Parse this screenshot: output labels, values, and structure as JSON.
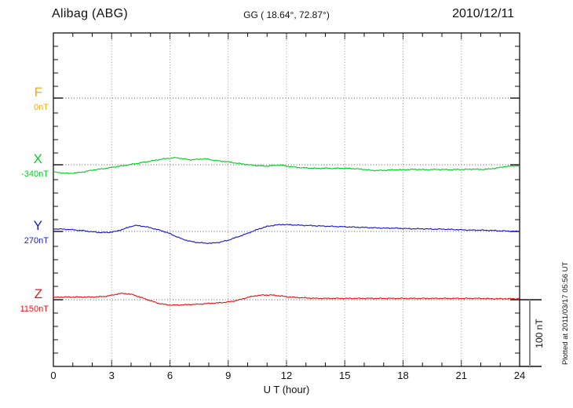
{
  "header": {
    "station": "Alibag (ABG)",
    "coordinates": "GG ( 18.64°,  72.87°)",
    "date": "2010/12/11"
  },
  "footer": {
    "plotted_at": "Plotted at 2011/03/17 05:56 UT"
  },
  "colors": {
    "frame": "#111111",
    "grid": "#999999",
    "baseline_dots": "#555555",
    "scale_bar": "#888888",
    "text": "#111111"
  },
  "chart_data": {
    "type": "line",
    "title": "Alibag (ABG) magnetogram 2010/12/11",
    "xlabel": "U T (hour)",
    "ylabel": "",
    "x_range": [
      0,
      24
    ],
    "x_ticks": [
      0,
      3,
      6,
      9,
      12,
      15,
      18,
      21,
      24
    ],
    "x_minor_tick_step_hours": 1,
    "grid": "dotted vertical lines every 3 h; dotted horizontal line at each channel baseline",
    "legend_position": "left baseline labels",
    "scale_bar": {
      "label": "100 nT",
      "value_nT": 100
    },
    "series": [
      {
        "name": "F",
        "baseline_label": "0nT",
        "baseline_value_nT": 0,
        "color": "#ffaa00",
        "points": []
      },
      {
        "name": "X",
        "baseline_label": "-340nT",
        "baseline_value_nT": -340,
        "color": "#00d020",
        "points": [
          [
            0,
            -11
          ],
          [
            0.4,
            -12
          ],
          [
            0.8,
            -13
          ],
          [
            1.2,
            -12
          ],
          [
            1.6,
            -10.5
          ],
          [
            2,
            -8
          ],
          [
            2.4,
            -6.5
          ],
          [
            2.8,
            -5
          ],
          [
            3.2,
            -3
          ],
          [
            3.6,
            -1.5
          ],
          [
            4,
            0.5
          ],
          [
            4.4,
            2.5
          ],
          [
            4.8,
            4.5
          ],
          [
            5.2,
            6.5
          ],
          [
            5.6,
            8.5
          ],
          [
            6,
            10
          ],
          [
            6.3,
            10.5
          ],
          [
            6.6,
            9.5
          ],
          [
            7,
            7.5
          ],
          [
            7.4,
            8
          ],
          [
            7.8,
            9
          ],
          [
            8.2,
            7
          ],
          [
            8.6,
            5.5
          ],
          [
            9,
            4.5
          ],
          [
            9.4,
            2.5
          ],
          [
            9.8,
            1
          ],
          [
            10.2,
            -0.5
          ],
          [
            10.6,
            -1.5
          ],
          [
            11,
            -2
          ],
          [
            11.4,
            -1
          ],
          [
            11.7,
            -0.5
          ],
          [
            12,
            -2
          ],
          [
            12.4,
            -3.5
          ],
          [
            12.8,
            -4.5
          ],
          [
            13.2,
            -5
          ],
          [
            13.6,
            -5.5
          ],
          [
            14,
            -5
          ],
          [
            14.4,
            -5.5
          ],
          [
            14.8,
            -5
          ],
          [
            15.2,
            -5.5
          ],
          [
            15.6,
            -6
          ],
          [
            16,
            -7
          ],
          [
            16.4,
            -8.5
          ],
          [
            16.8,
            -8.5
          ],
          [
            17.2,
            -8
          ],
          [
            17.6,
            -7.5
          ],
          [
            18,
            -7.5
          ],
          [
            18.4,
            -7
          ],
          [
            18.8,
            -7
          ],
          [
            19.2,
            -7.5
          ],
          [
            19.6,
            -7
          ],
          [
            20,
            -7
          ],
          [
            20.4,
            -7.5
          ],
          [
            20.8,
            -7
          ],
          [
            21.2,
            -7
          ],
          [
            21.6,
            -6.5
          ],
          [
            22,
            -7
          ],
          [
            22.4,
            -6.5
          ],
          [
            22.8,
            -5
          ],
          [
            23.2,
            -3
          ],
          [
            23.6,
            -2
          ],
          [
            24,
            -1.5
          ]
        ]
      },
      {
        "name": "Y",
        "baseline_label": "270nT",
        "baseline_value_nT": 270,
        "color": "#1a1ace",
        "points": [
          [
            0,
            4
          ],
          [
            0.4,
            3.5
          ],
          [
            0.8,
            3
          ],
          [
            1.2,
            2
          ],
          [
            1.6,
            1
          ],
          [
            2,
            -0.5
          ],
          [
            2.4,
            -1.5
          ],
          [
            2.8,
            -1.5
          ],
          [
            3.2,
            0
          ],
          [
            3.6,
            3.5
          ],
          [
            4,
            7.5
          ],
          [
            4.2,
            9
          ],
          [
            4.6,
            8
          ],
          [
            5,
            5.5
          ],
          [
            5.4,
            2.5
          ],
          [
            5.8,
            -1
          ],
          [
            6.2,
            -6
          ],
          [
            6.6,
            -11
          ],
          [
            7,
            -14.5
          ],
          [
            7.4,
            -16.5
          ],
          [
            7.8,
            -17.5
          ],
          [
            8.2,
            -17.5
          ],
          [
            8.6,
            -16
          ],
          [
            9,
            -13
          ],
          [
            9.4,
            -9
          ],
          [
            9.8,
            -5
          ],
          [
            10.2,
            -0.5
          ],
          [
            10.6,
            4
          ],
          [
            11,
            7.5
          ],
          [
            11.4,
            9.5
          ],
          [
            11.8,
            10.5
          ],
          [
            12.2,
            10
          ],
          [
            12.6,
            9.5
          ],
          [
            13,
            9
          ],
          [
            13.5,
            8.5
          ],
          [
            14,
            8
          ],
          [
            14.5,
            7.5
          ],
          [
            15,
            7
          ],
          [
            15.5,
            6.5
          ],
          [
            16,
            6
          ],
          [
            16.5,
            5.5
          ],
          [
            17,
            5
          ],
          [
            17.5,
            5
          ],
          [
            18,
            4.5
          ],
          [
            18.5,
            4
          ],
          [
            19,
            4
          ],
          [
            19.5,
            3.5
          ],
          [
            20,
            3.5
          ],
          [
            20.5,
            3
          ],
          [
            21,
            2.5
          ],
          [
            21.5,
            2
          ],
          [
            22,
            2
          ],
          [
            22.5,
            1.5
          ],
          [
            23,
            1
          ],
          [
            23.5,
            0.5
          ],
          [
            24,
            0
          ]
        ]
      },
      {
        "name": "Z",
        "baseline_label": "1150nT",
        "baseline_value_nT": 1150,
        "color": "#e81515",
        "points": [
          [
            0,
            3.5
          ],
          [
            0.4,
            4
          ],
          [
            0.8,
            4
          ],
          [
            1.2,
            4
          ],
          [
            1.6,
            4
          ],
          [
            2,
            4
          ],
          [
            2.4,
            4.5
          ],
          [
            2.8,
            5.5
          ],
          [
            3.2,
            8
          ],
          [
            3.5,
            9.5
          ],
          [
            3.8,
            9
          ],
          [
            4.1,
            7.5
          ],
          [
            4.4,
            4.5
          ],
          [
            4.7,
            1.5
          ],
          [
            5,
            -1.5
          ],
          [
            5.3,
            -4.5
          ],
          [
            5.6,
            -6.5
          ],
          [
            6,
            -8
          ],
          [
            6.4,
            -8
          ],
          [
            6.8,
            -7.5
          ],
          [
            7.2,
            -7
          ],
          [
            7.6,
            -6.5
          ],
          [
            8,
            -5.5
          ],
          [
            8.4,
            -5
          ],
          [
            8.8,
            -4
          ],
          [
            9.2,
            -2.5
          ],
          [
            9.6,
            0
          ],
          [
            10,
            3.5
          ],
          [
            10.4,
            6
          ],
          [
            10.8,
            7
          ],
          [
            11.2,
            7
          ],
          [
            11.6,
            6
          ],
          [
            12,
            4.5
          ],
          [
            12.4,
            3.5
          ],
          [
            12.8,
            3
          ],
          [
            13.2,
            2.5
          ],
          [
            13.6,
            2
          ],
          [
            14,
            2
          ],
          [
            14.5,
            2
          ],
          [
            15,
            2
          ],
          [
            15.5,
            2
          ],
          [
            16,
            2
          ],
          [
            16.5,
            2
          ],
          [
            17,
            2
          ],
          [
            17.5,
            2
          ],
          [
            18,
            2
          ],
          [
            18.5,
            2
          ],
          [
            19,
            2
          ],
          [
            19.5,
            2
          ],
          [
            20,
            2
          ],
          [
            20.5,
            2
          ],
          [
            21,
            2
          ],
          [
            21.5,
            2
          ],
          [
            22,
            2
          ],
          [
            22.5,
            1.5
          ],
          [
            23,
            1.5
          ],
          [
            23.5,
            1.5
          ],
          [
            24,
            1.5
          ]
        ]
      }
    ]
  }
}
